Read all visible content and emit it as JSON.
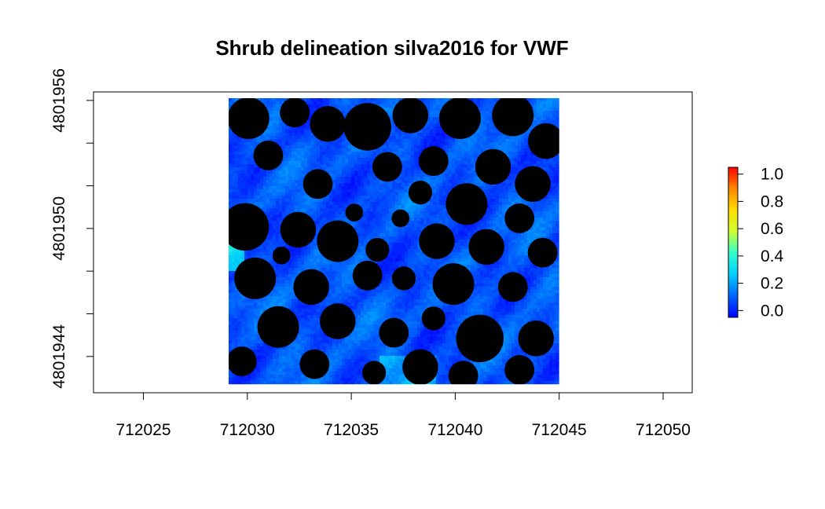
{
  "chart_data": {
    "type": "heatmap",
    "title": "Shrub delineation silva2016 for VWF",
    "xlabel": "",
    "ylabel": "",
    "xlim": [
      712022.6,
      712051.4
    ],
    "ylim": [
      4801942.3,
      4801956.4
    ],
    "x_ticks": [
      712025,
      712030,
      712035,
      712040,
      712045,
      712050
    ],
    "x_tick_labels": [
      "712025",
      "712030",
      "712035",
      "712040",
      "712045",
      "712050"
    ],
    "y_ticks": [
      4801944,
      4801946,
      4801948,
      4801950,
      4801952,
      4801954,
      4801956
    ],
    "y_tick_labels": [
      "4801944",
      "",
      "",
      "4801950",
      "",
      "",
      "4801956"
    ],
    "raster_extent": {
      "xmin": 712029.1,
      "xmax": 712045.0,
      "ymin": 4801942.7,
      "ymax": 4801956.6
    },
    "shrub_mask_color": "#000000",
    "legend": {
      "position": "right",
      "range": [
        -0.05,
        1.05
      ],
      "ticks": [
        0.0,
        0.2,
        0.4,
        0.6,
        0.8,
        1.0
      ],
      "tick_labels": [
        "0.0",
        "0.2",
        "0.4",
        "0.6",
        "0.8",
        "1.0"
      ],
      "colors": [
        "#0000ff",
        "#0066ff",
        "#00ccff",
        "#33ffcc",
        "#ccff33",
        "#ffdd00",
        "#ff8800",
        "#ff0000"
      ]
    },
    "value_summary": {
      "typical_min": 0.0,
      "typical_max": 0.35,
      "dominant": "0.05-0.15"
    },
    "grid": false
  }
}
